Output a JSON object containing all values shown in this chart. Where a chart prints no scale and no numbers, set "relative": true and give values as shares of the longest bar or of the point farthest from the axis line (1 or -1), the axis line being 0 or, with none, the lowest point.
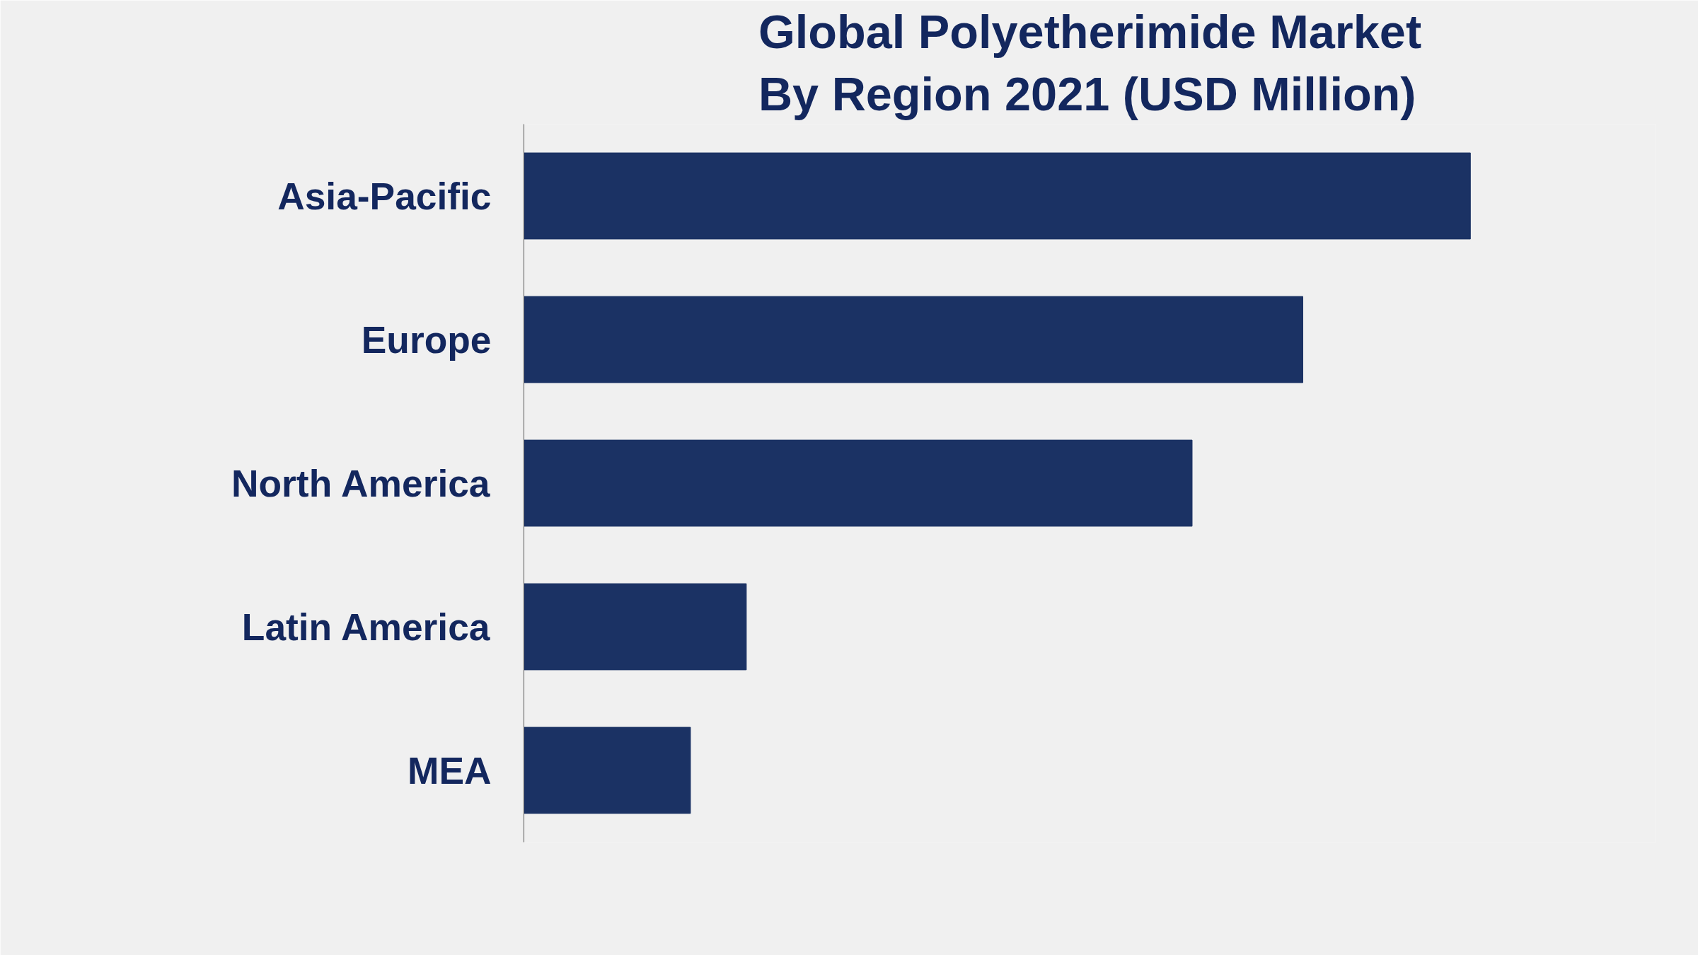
{
  "chart_data": {
    "type": "bar",
    "orientation": "horizontal",
    "relative": true,
    "title": "Global Polyetherimide Market\nBy Region 2021 (USD Million)",
    "categories": [
      "Asia-Pacific",
      "Europe",
      "North America",
      "Latin America",
      "MEA"
    ],
    "values": [
      1.0,
      0.823,
      0.706,
      0.235,
      0.176
    ],
    "color": "#1b3264",
    "grid": false
  }
}
